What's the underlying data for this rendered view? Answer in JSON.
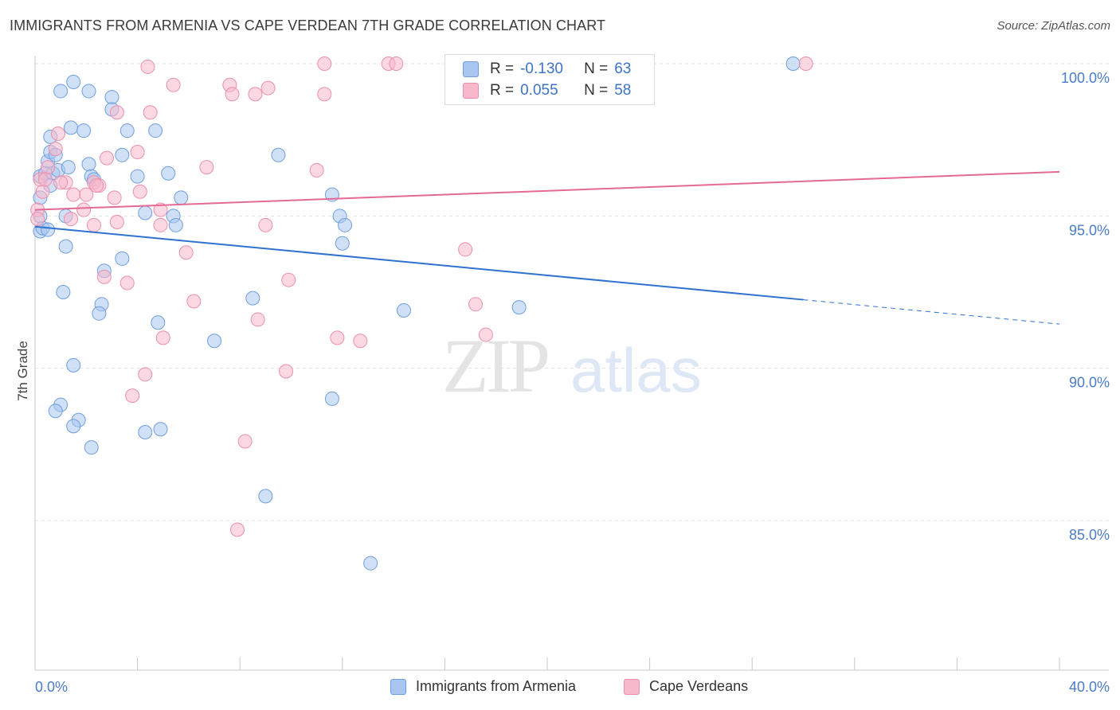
{
  "header": {
    "title": "IMMIGRANTS FROM ARMENIA VS CAPE VERDEAN 7TH GRADE CORRELATION CHART",
    "source": "Source: ZipAtlas.com"
  },
  "legend_stats": [
    {
      "r_label": "R =",
      "r_value": "-0.130",
      "n_label": "N =",
      "n_value": "63",
      "color": "#a9c6f0",
      "stroke": "#6f9fe0"
    },
    {
      "r_label": "R =",
      "r_value": "0.055",
      "n_label": "N =",
      "n_value": "58",
      "color": "#f7b8cb",
      "stroke": "#ec8fae"
    }
  ],
  "watermark": {
    "zip": "ZIP",
    "atlas": "atlas"
  },
  "chart_data": {
    "type": "scatter",
    "title": "IMMIGRANTS FROM ARMENIA VS CAPE VERDEAN 7TH GRADE CORRELATION CHART",
    "xlabel": "",
    "ylabel": "7th Grade",
    "xlim": [
      0,
      40
    ],
    "ylim": [
      80.5,
      100.8
    ],
    "x_tick_labels": [
      "0.0%",
      "40.0%"
    ],
    "y_ticks": [
      85,
      90,
      95,
      100
    ],
    "y_tick_labels": [
      "85.0%",
      "90.0%",
      "95.0%",
      "100.0%"
    ],
    "grid": true,
    "legend_position": "bottom",
    "series": [
      {
        "name": "Immigrants from Armenia",
        "color": "#a9c6f0",
        "stroke": "#6f9fe0",
        "line_color": "#2f72d0",
        "trend": {
          "x0": 0,
          "y0": 94.65,
          "x1": 30,
          "y1": 92.25,
          "dash_to_x": 40,
          "dash_to_y": 91.45
        },
        "points": [
          [
            0.2,
            94.5
          ],
          [
            0.3,
            94.6
          ],
          [
            0.5,
            94.55
          ],
          [
            0.2,
            95.6
          ],
          [
            0.2,
            96.3
          ],
          [
            0.4,
            96.4
          ],
          [
            0.5,
            96.8
          ],
          [
            0.6,
            97.1
          ],
          [
            0.7,
            96.4
          ],
          [
            0.8,
            97.0
          ],
          [
            0.6,
            96.0
          ],
          [
            0.6,
            97.6
          ],
          [
            0.9,
            96.5
          ],
          [
            1.3,
            96.6
          ],
          [
            1.0,
            99.1
          ],
          [
            1.5,
            99.4
          ],
          [
            2.1,
            99.1
          ],
          [
            3.0,
            98.9
          ],
          [
            1.4,
            97.9
          ],
          [
            1.9,
            97.8
          ],
          [
            3.0,
            98.5
          ],
          [
            3.6,
            97.8
          ],
          [
            4.7,
            97.8
          ],
          [
            2.1,
            96.7
          ],
          [
            2.2,
            96.3
          ],
          [
            2.3,
            96.2
          ],
          [
            3.4,
            97.0
          ],
          [
            4.0,
            96.3
          ],
          [
            5.2,
            96.4
          ],
          [
            5.7,
            95.6
          ],
          [
            1.2,
            95.0
          ],
          [
            1.2,
            94.0
          ],
          [
            4.3,
            95.1
          ],
          [
            5.4,
            95.0
          ],
          [
            5.5,
            94.7
          ],
          [
            3.4,
            93.6
          ],
          [
            2.7,
            93.2
          ],
          [
            1.1,
            92.5
          ],
          [
            2.6,
            92.1
          ],
          [
            2.5,
            91.8
          ],
          [
            4.8,
            91.5
          ],
          [
            7.0,
            90.9
          ],
          [
            1.5,
            90.1
          ],
          [
            1.0,
            88.8
          ],
          [
            0.8,
            88.6
          ],
          [
            1.7,
            88.3
          ],
          [
            1.5,
            88.1
          ],
          [
            4.3,
            87.9
          ],
          [
            4.9,
            88.0
          ],
          [
            2.2,
            87.4
          ],
          [
            9.5,
            97.0
          ],
          [
            11.6,
            95.7
          ],
          [
            11.9,
            95.0
          ],
          [
            12.1,
            94.7
          ],
          [
            12.0,
            94.1
          ],
          [
            8.5,
            92.3
          ],
          [
            14.4,
            91.9
          ],
          [
            18.9,
            92.0
          ],
          [
            11.6,
            89.0
          ],
          [
            9.0,
            85.8
          ],
          [
            13.1,
            83.6
          ],
          [
            29.6,
            100.0
          ],
          [
            0.2,
            95.0
          ]
        ]
      },
      {
        "name": "Cape Verdeans",
        "color": "#f7b8cb",
        "stroke": "#ec8fae",
        "line_color": "#e46a95",
        "trend": {
          "x0": 0,
          "y0": 95.2,
          "x1": 40,
          "y1": 96.45
        },
        "points": [
          [
            0.1,
            95.2
          ],
          [
            0.3,
            95.8
          ],
          [
            0.5,
            96.6
          ],
          [
            0.8,
            97.2
          ],
          [
            0.9,
            97.7
          ],
          [
            1.2,
            96.1
          ],
          [
            1.5,
            95.7
          ],
          [
            2.0,
            95.7
          ],
          [
            2.3,
            96.1
          ],
          [
            2.5,
            96.0
          ],
          [
            2.8,
            96.9
          ],
          [
            3.1,
            95.6
          ],
          [
            4.1,
            95.8
          ],
          [
            4.0,
            97.1
          ],
          [
            3.2,
            98.4
          ],
          [
            4.5,
            98.4
          ],
          [
            5.4,
            99.3
          ],
          [
            4.4,
            99.9
          ],
          [
            7.6,
            99.3
          ],
          [
            7.7,
            99.0
          ],
          [
            8.6,
            99.0
          ],
          [
            9.1,
            99.2
          ],
          [
            11.3,
            99.0
          ],
          [
            11.3,
            100.0
          ],
          [
            13.8,
            100.0
          ],
          [
            14.1,
            100.0
          ],
          [
            30.1,
            100.0
          ],
          [
            6.7,
            96.6
          ],
          [
            11.0,
            96.5
          ],
          [
            1.4,
            94.9
          ],
          [
            1.9,
            95.2
          ],
          [
            2.3,
            94.7
          ],
          [
            3.2,
            94.8
          ],
          [
            4.9,
            95.2
          ],
          [
            4.9,
            94.7
          ],
          [
            9.0,
            94.7
          ],
          [
            5.9,
            93.8
          ],
          [
            16.8,
            93.9
          ],
          [
            2.7,
            93.0
          ],
          [
            3.6,
            92.8
          ],
          [
            9.9,
            92.9
          ],
          [
            6.2,
            92.2
          ],
          [
            8.7,
            91.6
          ],
          [
            17.2,
            92.1
          ],
          [
            5.0,
            91.0
          ],
          [
            11.8,
            91.0
          ],
          [
            12.7,
            90.9
          ],
          [
            17.6,
            91.1
          ],
          [
            4.3,
            89.8
          ],
          [
            9.8,
            89.9
          ],
          [
            3.8,
            89.1
          ],
          [
            8.2,
            87.6
          ],
          [
            7.9,
            84.7
          ],
          [
            0.2,
            96.2
          ],
          [
            1.0,
            96.1
          ],
          [
            0.4,
            96.2
          ],
          [
            2.4,
            96.0
          ],
          [
            0.1,
            94.9
          ]
        ]
      }
    ]
  }
}
